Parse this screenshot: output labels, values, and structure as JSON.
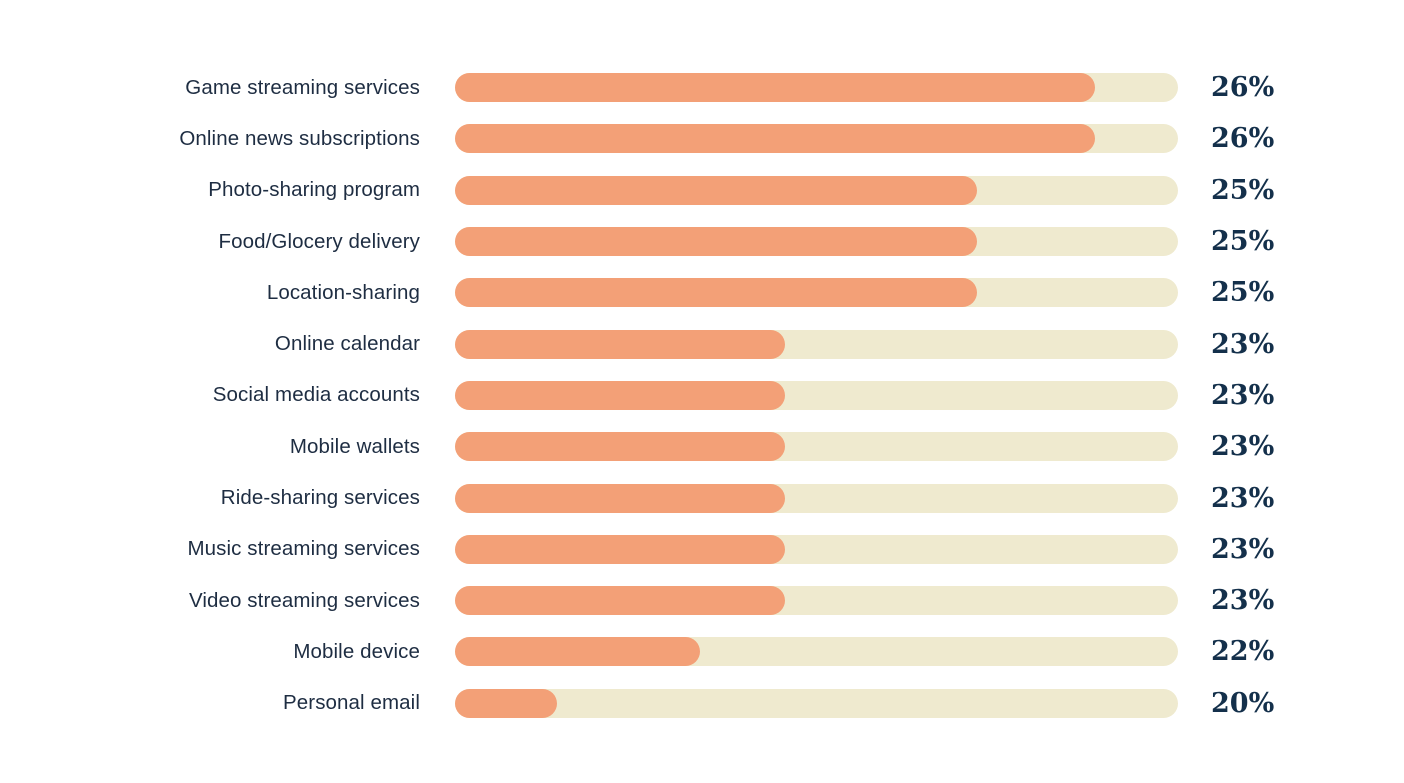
{
  "chart_data": {
    "type": "bar",
    "orientation": "horizontal",
    "title": "",
    "xlabel": "",
    "ylabel": "",
    "legend": "none",
    "grid": false,
    "value_suffix": "%",
    "categories": [
      "Game streaming services",
      "Online news subscriptions",
      "Photo-sharing program",
      "Food/Glocery delivery",
      "Location-sharing",
      "Online calendar",
      "Social media accounts",
      "Mobile wallets",
      "Ride-sharing services",
      "Music streaming services",
      "Video streaming services",
      "Mobile device",
      "Personal email"
    ],
    "values": [
      26,
      26,
      25,
      25,
      25,
      23,
      23,
      23,
      23,
      23,
      23,
      22,
      20
    ],
    "value_labels": [
      "26%",
      "26%",
      "25%",
      "25%",
      "25%",
      "23%",
      "23%",
      "23%",
      "23%",
      "23%",
      "23%",
      "22%",
      "20%"
    ],
    "bar_fill_fractions": [
      0.885,
      0.885,
      0.722,
      0.722,
      0.722,
      0.456,
      0.456,
      0.456,
      0.456,
      0.456,
      0.456,
      0.339,
      0.141
    ],
    "colors": {
      "bar_fill": "#f3a077",
      "bar_track": "#efeacf",
      "category_label": "#1e2d42",
      "value_label": "#14304b",
      "background": "#ffffff"
    }
  }
}
